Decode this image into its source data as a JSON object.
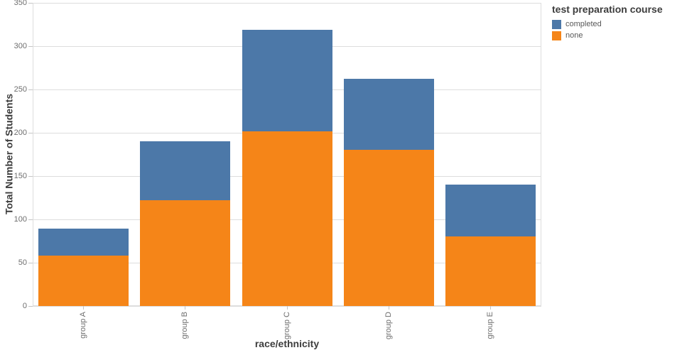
{
  "chart_data": {
    "type": "bar",
    "stacked": true,
    "categories": [
      "group A",
      "group B",
      "group C",
      "group D",
      "group E"
    ],
    "series": [
      {
        "name": "completed",
        "color": "#4c78a8",
        "values": [
          31,
          68,
          117,
          82,
          60
        ]
      },
      {
        "name": "none",
        "color": "#f58518",
        "values": [
          58,
          122,
          202,
          180,
          80
        ]
      }
    ],
    "stack_bottom_to_top": [
      "none",
      "completed"
    ],
    "totals": [
      89,
      190,
      319,
      262,
      140
    ],
    "title": "",
    "xlabel": "race/ethnicity",
    "ylabel": "Total Number of Students",
    "ylim": [
      0,
      350
    ],
    "y_ticks": [
      0,
      50,
      100,
      150,
      200,
      250,
      300,
      350
    ],
    "grid": true,
    "legend_title": "test preparation course",
    "legend_position": "top-right-outside"
  },
  "colors": {
    "completed": "#4c78a8",
    "none": "#f58518",
    "grid": "#dddddd",
    "axis_tick": "#c4c4c4",
    "tick_label": "#6e6e6e",
    "title_text": "#3d3d3d",
    "background": "#ffffff"
  }
}
